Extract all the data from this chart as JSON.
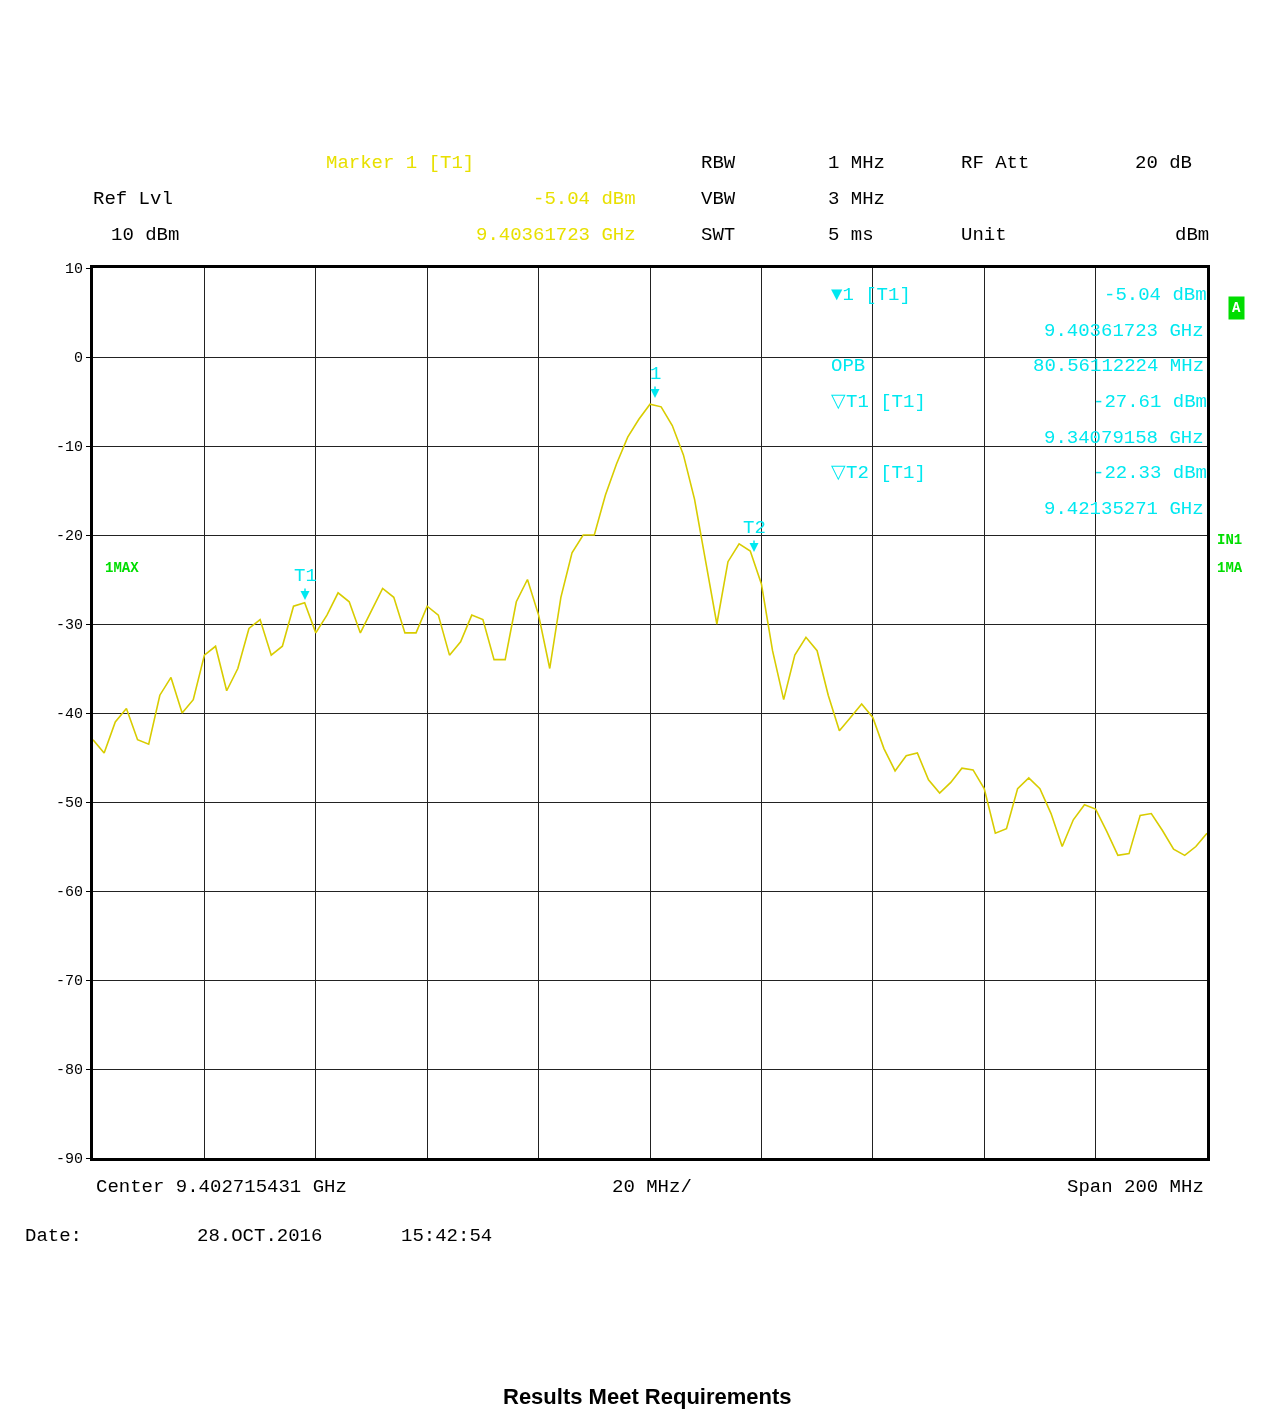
{
  "chart_data": {
    "type": "line",
    "categories": [
      null,
      null,
      null,
      null,
      null,
      null,
      null,
      null,
      null,
      null,
      null,
      null,
      null,
      null,
      null,
      null,
      null,
      null,
      null,
      null,
      null,
      null,
      null,
      null,
      null,
      null,
      null,
      null,
      null,
      null,
      null,
      null,
      null,
      null,
      null,
      null,
      null,
      null,
      null,
      null,
      null,
      null,
      null,
      null,
      null,
      null,
      null,
      null,
      null,
      null,
      null,
      null,
      null,
      null,
      null,
      null,
      null,
      null,
      null,
      null,
      null,
      null,
      null,
      null,
      null,
      null,
      null,
      null,
      null,
      null,
      null,
      null,
      null,
      null,
      null,
      null,
      null,
      null,
      null,
      null,
      null,
      null,
      null,
      null,
      null,
      null,
      null,
      null,
      null,
      null,
      null,
      null,
      null,
      null,
      null,
      null,
      null,
      null,
      null,
      null,
      null
    ],
    "series": [
      {
        "color": "#d8cc00",
        "values": [
          -43,
          -44.5,
          -41,
          -39.5,
          -43,
          -43.5,
          -38,
          -36,
          -40,
          -38.5,
          -33.5,
          -32.5,
          -37.5,
          -35,
          -30.5,
          -29.5,
          -33.5,
          -32.5,
          -28,
          -27.6,
          -31,
          -29,
          -26.5,
          -27.5,
          -31,
          -28.5,
          -26,
          -27,
          -31,
          -31,
          -28,
          -29,
          -33.5,
          -32,
          -29,
          -29.5,
          -34,
          -34,
          -27.5,
          -25,
          -29,
          -35,
          -27,
          -22,
          -20,
          -20,
          -15.5,
          -12,
          -9,
          -7,
          -5.3,
          -5.6,
          -7.7,
          -11,
          -16,
          -23,
          -30,
          -23,
          -21,
          -21.8,
          -25.5,
          -33,
          -38.5,
          -33.5,
          -31.5,
          -33,
          -38,
          -42,
          -40.5,
          -39,
          -40.5,
          -44,
          -46.5,
          -44.8,
          -44.5,
          -47.5,
          -49,
          -47.8,
          -46.2,
          -46.4,
          -48.5,
          -53.5,
          -53,
          -48.5,
          -47.3,
          -48.5,
          -51.3,
          -55,
          -52,
          -50.3,
          -50.8,
          -53.3,
          -56,
          -55.8,
          -51.5,
          -51.3,
          -53.2,
          -55.3,
          -56,
          -55,
          -53.5
        ]
      }
    ],
    "ylim": [
      -90,
      10
    ],
    "yticks": [
      -90,
      -80,
      -70,
      -60,
      -50,
      -40,
      -30,
      -20,
      -10,
      0,
      10
    ],
    "grid": true,
    "legend": false,
    "marker": "none",
    "line_style": "solid",
    "tick_labels": "y",
    "annotations": [
      "1",
      "T1",
      "T2",
      "Marker 1 [T1]",
      "-5.04 dBm",
      "9.40361723 GHz",
      "Ref Lvl",
      "10 dBm",
      "RBW",
      "1 MHz",
      "VBW",
      "3 MHz",
      "SWT",
      "5 ms",
      "RF Att",
      "20 dB",
      "Unit",
      "dBm",
      "▼1 [T1]",
      "-5.04 dBm",
      "9.40361723 GHz",
      "OPB",
      "80.56112224 MHz",
      "▽T1 [T1]",
      "-27.61 dBm",
      "9.34079158 GHz",
      "▽T2 [T1]",
      "-22.33 dBm",
      "9.42135271 GHz",
      "A",
      "IN1",
      "1MA",
      "1MAX",
      "Center 9.402715431 GHz",
      "20 MHz/",
      "Span 200 MHz",
      "Date:",
      "28.OCT.2016",
      "15:42:54",
      "Results Meet Requirements"
    ]
  }
}
